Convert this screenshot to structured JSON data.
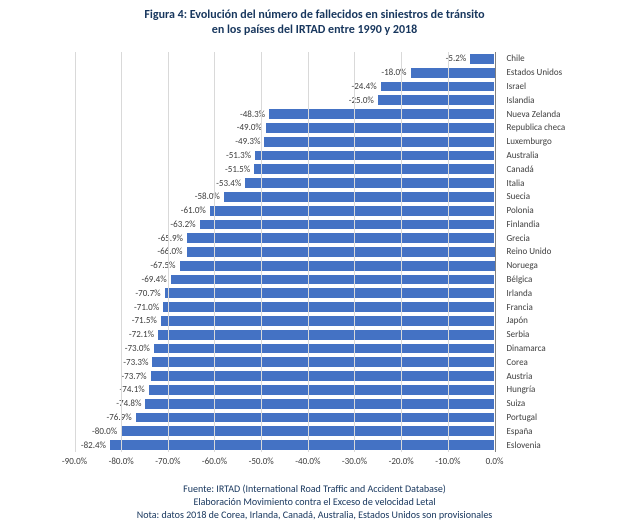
{
  "title_line1": "Figura 4: Evolución del número de fallecidos en siniestros de tránsito",
  "title_line2": "en los países del IRTAD entre 1990 y 2018",
  "footer_line1": "Fuente: IRTAD (International Road Traffic and Accident Database)",
  "footer_line2": "Elaboración Movimiento contra el Exceso de velocidad Letal",
  "footer_line3": "Nota: datos 2018 de Corea, Irlanda, Canadá, Australia, Estados Unidos son provisionales",
  "chart": {
    "type": "bar-horizontal",
    "xlim": [
      -90,
      0
    ],
    "xtick_step": 10,
    "xtick_format": "percent1",
    "bar_color": "#4472c4",
    "grid_color": "#d9d9d9",
    "zero_color": "#808080",
    "background_color": "#ffffff",
    "label_fontsize": 9,
    "tick_fontsize": 9,
    "title_fontsize": 12,
    "title_color": "#17365d",
    "x_ticks": [
      -90,
      -80,
      -70,
      -60,
      -50,
      -40,
      -30,
      -20,
      -10,
      0
    ],
    "series": [
      {
        "label": "Chile",
        "value": -5.2
      },
      {
        "label": "Estados Unidos",
        "value": -18.0
      },
      {
        "label": "Israel",
        "value": -24.4
      },
      {
        "label": "Islandia",
        "value": -25.0
      },
      {
        "label": "Nueva Zelanda",
        "value": -48.3
      },
      {
        "label": "Republica checa",
        "value": -49.0
      },
      {
        "label": "Luxemburgo",
        "value": -49.3
      },
      {
        "label": "Australia",
        "value": -51.3
      },
      {
        "label": "Canadá",
        "value": -51.5
      },
      {
        "label": "Italia",
        "value": -53.4
      },
      {
        "label": "Suecia",
        "value": -58.0
      },
      {
        "label": "Polonia",
        "value": -61.0
      },
      {
        "label": "Finlandia",
        "value": -63.2
      },
      {
        "label": "Grecia",
        "value": -65.9
      },
      {
        "label": "Reino Unido",
        "value": -66.0
      },
      {
        "label": "Noruega",
        "value": -67.5
      },
      {
        "label": "Bélgica",
        "value": -69.4
      },
      {
        "label": "Irlanda",
        "value": -70.7
      },
      {
        "label": "Francia",
        "value": -71.0
      },
      {
        "label": "Japón",
        "value": -71.5
      },
      {
        "label": "Serbia",
        "value": -72.1
      },
      {
        "label": "Dinamarca",
        "value": -73.0
      },
      {
        "label": "Corea",
        "value": -73.3
      },
      {
        "label": "Austria",
        "value": -73.7
      },
      {
        "label": "Hungría",
        "value": -74.1
      },
      {
        "label": "Suiza",
        "value": -74.8
      },
      {
        "label": "Portugal",
        "value": -76.9
      },
      {
        "label": "España",
        "value": -80.0
      },
      {
        "label": "Eslovenia",
        "value": -82.4
      }
    ]
  }
}
